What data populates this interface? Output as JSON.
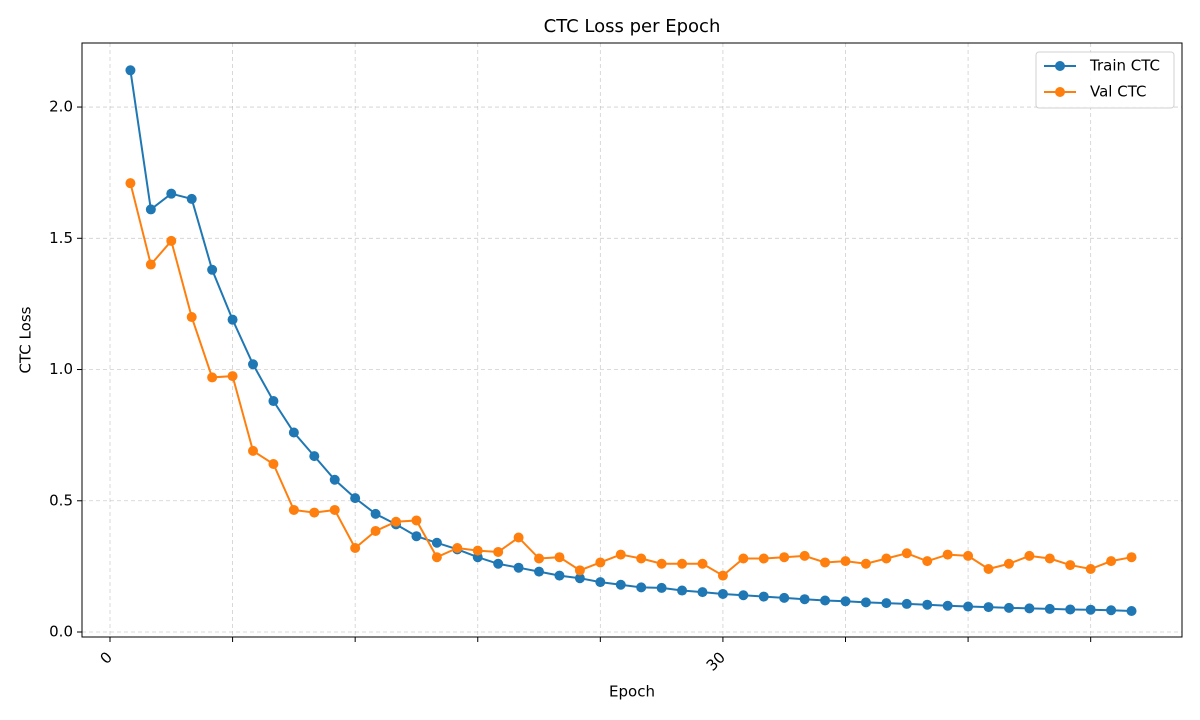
{
  "chart_data": {
    "type": "line",
    "title": "CTC Loss per Epoch",
    "xlabel": "Epoch",
    "ylabel": "CTC Loss",
    "x": [
      1,
      2,
      3,
      4,
      5,
      6,
      7,
      8,
      9,
      10,
      11,
      12,
      13,
      14,
      15,
      16,
      17,
      18,
      19,
      20,
      21,
      22,
      23,
      24,
      25,
      26,
      27,
      28,
      29,
      30,
      31,
      32,
      33,
      34,
      35,
      36,
      37,
      38,
      39,
      40,
      41,
      42,
      43,
      44,
      45,
      46,
      47,
      48,
      49,
      50
    ],
    "series": [
      {
        "name": "Train CTC",
        "color": "#1f77b4",
        "values": [
          2.14,
          1.61,
          1.67,
          1.65,
          1.38,
          1.19,
          1.02,
          0.88,
          0.76,
          0.67,
          0.58,
          0.51,
          0.45,
          0.41,
          0.365,
          0.34,
          0.315,
          0.285,
          0.26,
          0.245,
          0.23,
          0.215,
          0.205,
          0.19,
          0.18,
          0.17,
          0.168,
          0.158,
          0.152,
          0.145,
          0.14,
          0.135,
          0.13,
          0.125,
          0.12,
          0.117,
          0.113,
          0.11,
          0.107,
          0.104,
          0.1,
          0.097,
          0.095,
          0.092,
          0.09,
          0.088,
          0.086,
          0.085,
          0.083,
          0.08
        ]
      },
      {
        "name": "Val CTC",
        "color": "#ff7f0e",
        "values": [
          1.71,
          1.4,
          1.49,
          1.2,
          0.97,
          0.975,
          0.69,
          0.64,
          0.465,
          0.455,
          0.465,
          0.32,
          0.385,
          0.42,
          0.425,
          0.285,
          0.32,
          0.31,
          0.305,
          0.36,
          0.28,
          0.285,
          0.235,
          0.265,
          0.295,
          0.28,
          0.26,
          0.26,
          0.26,
          0.215,
          0.28,
          0.28,
          0.285,
          0.29,
          0.265,
          0.27,
          0.26,
          0.28,
          0.3,
          0.27,
          0.295,
          0.29,
          0.24,
          0.26,
          0.29,
          0.28,
          0.255,
          0.24,
          0.27,
          0.285
        ]
      }
    ],
    "xlim": [
      -1.37,
      52.47
    ],
    "ylim": [
      -0.019,
      2.244
    ],
    "xticks": [
      0,
      {
        "value": 6,
        "label": null
      },
      {
        "value": 12,
        "label": null
      },
      {
        "value": 18,
        "label": null
      },
      {
        "value": 24,
        "label": null
      },
      30,
      {
        "value": 36,
        "label": null
      },
      {
        "value": 42,
        "label": null
      },
      {
        "value": 48,
        "label": null
      }
    ],
    "yticks": [
      {
        "value": 0,
        "label": "0.0"
      },
      {
        "value": 0.5,
        "label": "0.5"
      },
      {
        "value": 1,
        "label": "1.0"
      },
      {
        "value": 1.5,
        "label": "1.5"
      },
      {
        "value": 2,
        "label": "2.0"
      }
    ],
    "grid": true,
    "legend": "upper right"
  }
}
